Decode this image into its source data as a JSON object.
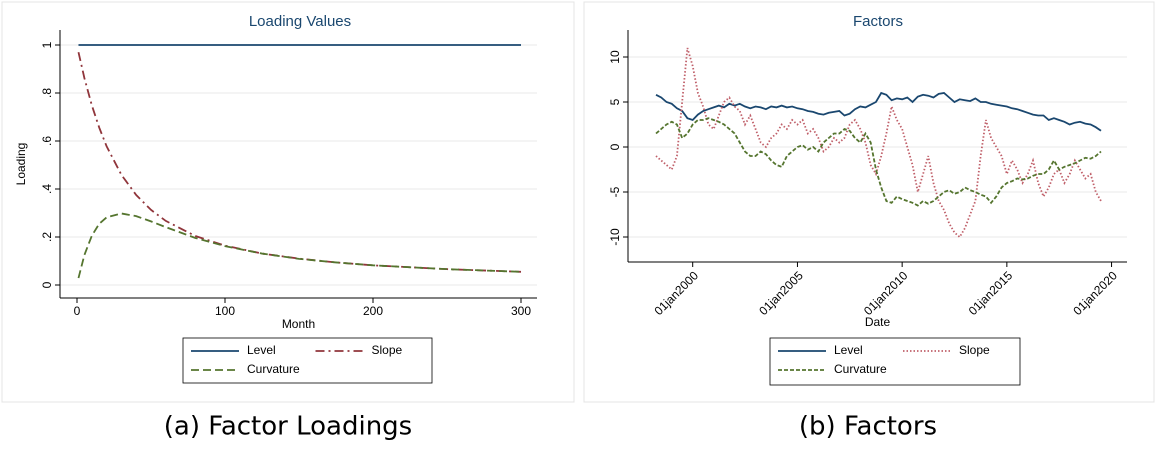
{
  "chart_data": [
    {
      "type": "line",
      "title": "Loading Values",
      "xlabel": "Month",
      "ylabel": "Loading",
      "caption": "(a) Factor Loadings",
      "x": [
        1,
        5,
        10,
        15,
        20,
        30,
        40,
        50,
        60,
        80,
        100,
        125,
        150,
        175,
        200,
        250,
        300
      ],
      "series": [
        {
          "name": "Level",
          "color": "#1a476f",
          "dash": "none",
          "values": [
            1,
            1,
            1,
            1,
            1,
            1,
            1,
            1,
            1,
            1,
            1,
            1,
            1,
            1,
            1,
            1,
            1
          ]
        },
        {
          "name": "Slope",
          "color": "#90353b",
          "dash": "9 4 2 4",
          "values": [
            0.97,
            0.862,
            0.749,
            0.656,
            0.578,
            0.459,
            0.375,
            0.313,
            0.267,
            0.204,
            0.164,
            0.131,
            0.11,
            0.094,
            0.082,
            0.066,
            0.055
          ]
        },
        {
          "name": "Curvature",
          "color": "#55752f",
          "dash": "8 4",
          "values": [
            0.029,
            0.125,
            0.205,
            0.255,
            0.282,
            0.298,
            0.287,
            0.265,
            0.241,
            0.196,
            0.162,
            0.131,
            0.109,
            0.094,
            0.082,
            0.066,
            0.055
          ]
        }
      ],
      "xlim": [
        0,
        300
      ],
      "xticks": [
        0,
        100,
        200,
        300
      ],
      "ylim": [
        0,
        1
      ],
      "yticks": [
        0,
        {
          "value": 0.2,
          "label": ".2"
        },
        {
          "value": 0.4,
          "label": ".4"
        },
        {
          "value": 0.6,
          "label": ".6"
        },
        {
          "value": 0.8,
          "label": ".8"
        },
        1
      ],
      "grid": true
    },
    {
      "type": "line",
      "title": "Factors",
      "xlabel": "Date",
      "caption": "(b) Factors",
      "x": [
        "1998-04-01",
        "1998-07-01",
        "1998-10-01",
        "1999-01-01",
        "1999-04-01",
        "1999-07-01",
        "1999-10-01",
        "2000-01-01",
        "2000-04-01",
        "2000-07-01",
        "2000-10-01",
        "2001-01-01",
        "2001-04-01",
        "2001-07-01",
        "2001-10-01",
        "2002-01-01",
        "2002-04-01",
        "2002-07-01",
        "2002-10-01",
        "2003-01-01",
        "2003-04-01",
        "2003-07-01",
        "2003-10-01",
        "2004-01-01",
        "2004-04-01",
        "2004-07-01",
        "2004-10-01",
        "2005-01-01",
        "2005-04-01",
        "2005-07-01",
        "2005-10-01",
        "2006-01-01",
        "2006-04-01",
        "2006-07-01",
        "2006-10-01",
        "2007-01-01",
        "2007-04-01",
        "2007-07-01",
        "2007-10-01",
        "2008-01-01",
        "2008-04-01",
        "2008-07-01",
        "2008-10-01",
        "2009-01-01",
        "2009-04-01",
        "2009-07-01",
        "2009-10-01",
        "2010-01-01",
        "2010-04-01",
        "2010-07-01",
        "2010-10-01",
        "2011-01-01",
        "2011-04-01",
        "2011-07-01",
        "2011-10-01",
        "2012-01-01",
        "2012-04-01",
        "2012-07-01",
        "2012-10-01",
        "2013-01-01",
        "2013-04-01",
        "2013-07-01",
        "2013-10-01",
        "2014-01-01",
        "2014-04-01",
        "2014-07-01",
        "2014-10-01",
        "2015-01-01",
        "2015-04-01",
        "2015-07-01",
        "2015-10-01",
        "2016-01-01",
        "2016-04-01",
        "2016-07-01",
        "2016-10-01",
        "2017-01-01",
        "2017-04-01",
        "2017-07-01",
        "2017-10-01",
        "2018-01-01",
        "2018-04-01",
        "2018-07-01",
        "2018-10-01",
        "2019-01-01",
        "2019-04-01",
        "2019-07-01"
      ],
      "series": [
        {
          "name": "Level",
          "color": "#1a476f",
          "dash": "none",
          "values": [
            5.8,
            5.5,
            5.0,
            4.8,
            4.3,
            4.0,
            3.2,
            3.0,
            3.6,
            4.0,
            4.2,
            4.4,
            4.6,
            4.4,
            4.8,
            4.6,
            4.8,
            4.5,
            4.3,
            4.5,
            4.4,
            4.2,
            4.5,
            4.4,
            4.6,
            4.4,
            4.5,
            4.3,
            4.2,
            4.0,
            3.9,
            3.7,
            3.6,
            3.8,
            3.9,
            4.0,
            3.5,
            3.7,
            4.2,
            4.5,
            4.4,
            4.7,
            5.0,
            6.0,
            5.8,
            5.2,
            5.4,
            5.3,
            5.5,
            5.0,
            5.6,
            5.8,
            5.7,
            5.5,
            5.9,
            6.0,
            5.5,
            5.0,
            5.3,
            5.2,
            5.1,
            5.4,
            5.0,
            5.0,
            4.8,
            4.7,
            4.6,
            4.5,
            4.3,
            4.2,
            4.0,
            3.8,
            3.6,
            3.5,
            3.5,
            3.0,
            3.2,
            3.0,
            2.8,
            2.5,
            2.7,
            2.8,
            2.6,
            2.5,
            2.2,
            1.8
          ]
        },
        {
          "name": "Slope",
          "color": "#c0606a",
          "dash": "1.5 2",
          "values": [
            -1.0,
            -1.5,
            -2.0,
            -2.5,
            -1.0,
            5.0,
            11.0,
            9.0,
            6.0,
            4.5,
            2.5,
            2.0,
            3.5,
            5.0,
            5.5,
            4.5,
            4.0,
            2.5,
            3.5,
            2.0,
            0.5,
            0.0,
            1.0,
            1.5,
            2.5,
            2.0,
            3.0,
            2.5,
            3.0,
            1.5,
            2.0,
            1.0,
            -0.5,
            0.0,
            1.0,
            0.5,
            1.0,
            2.5,
            3.0,
            2.0,
            0.5,
            -2.0,
            -3.0,
            -1.0,
            1.5,
            4.5,
            3.0,
            2.0,
            0.0,
            -2.0,
            -5.0,
            -3.0,
            -1.0,
            -4.0,
            -6.0,
            -7.0,
            -8.5,
            -9.5,
            -10.0,
            -9.0,
            -7.5,
            -6.0,
            -1.0,
            3.0,
            1.0,
            0.0,
            -1.0,
            -3.0,
            -1.5,
            -2.5,
            -4.0,
            -3.0,
            -1.5,
            -4.0,
            -5.5,
            -4.5,
            -3.0,
            -2.5,
            -4.0,
            -3.0,
            -1.5,
            -2.5,
            -3.5,
            -3.0,
            -5.0,
            -6.0
          ]
        },
        {
          "name": "Curvature",
          "color": "#55752f",
          "dash": "4 2",
          "values": [
            1.5,
            2.0,
            2.5,
            2.8,
            2.5,
            1.0,
            1.5,
            2.5,
            3.0,
            3.0,
            3.2,
            3.0,
            2.8,
            2.5,
            2.0,
            1.5,
            0.5,
            -0.5,
            -1.0,
            -1.0,
            -0.5,
            -0.8,
            -1.5,
            -2.0,
            -2.2,
            -1.0,
            -0.5,
            0.0,
            0.2,
            -0.3,
            0.0,
            -0.5,
            0.5,
            1.0,
            1.5,
            1.5,
            2.0,
            1.8,
            1.0,
            0.5,
            1.5,
            0.5,
            -2.5,
            -4.5,
            -6.0,
            -6.2,
            -5.5,
            -5.8,
            -6.0,
            -6.2,
            -6.5,
            -6.0,
            -6.3,
            -6.0,
            -5.5,
            -5.0,
            -4.8,
            -5.2,
            -5.0,
            -4.5,
            -4.8,
            -5.0,
            -5.3,
            -5.5,
            -6.2,
            -5.5,
            -4.5,
            -4.0,
            -3.8,
            -3.5,
            -3.6,
            -3.5,
            -3.2,
            -3.0,
            -3.0,
            -2.5,
            -1.5,
            -2.5,
            -2.2,
            -2.0,
            -1.8,
            -1.5,
            -1.2,
            -1.3,
            -1.0,
            -0.5
          ]
        }
      ],
      "xlim": [
        "1998-04-01",
        "2019-07-01"
      ],
      "xticks": [
        {
          "value": "2000-01-01",
          "label": "01jan2000"
        },
        {
          "value": "2005-01-01",
          "label": "01jan2005"
        },
        {
          "value": "2010-01-01",
          "label": "01jan2010"
        },
        {
          "value": "2015-01-01",
          "label": "01jan2015"
        },
        {
          "value": "2020-01-01",
          "label": "01jan2020"
        }
      ],
      "ylim": [
        -10,
        10
      ],
      "yticks": [
        -10,
        -5,
        0,
        5,
        10
      ],
      "grid": true
    }
  ]
}
